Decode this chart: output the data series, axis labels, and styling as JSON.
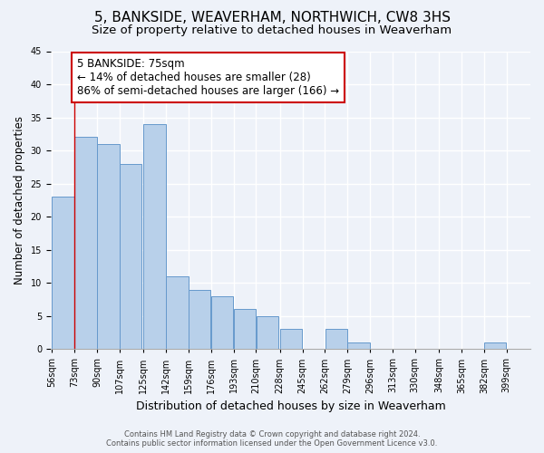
{
  "title": "5, BANKSIDE, WEAVERHAM, NORTHWICH, CW8 3HS",
  "subtitle": "Size of property relative to detached houses in Weaverham",
  "xlabel": "Distribution of detached houses by size in Weaverham",
  "ylabel": "Number of detached properties",
  "bin_labels": [
    "56sqm",
    "73sqm",
    "90sqm",
    "107sqm",
    "125sqm",
    "142sqm",
    "159sqm",
    "176sqm",
    "193sqm",
    "210sqm",
    "228sqm",
    "245sqm",
    "262sqm",
    "279sqm",
    "296sqm",
    "313sqm",
    "330sqm",
    "348sqm",
    "365sqm",
    "382sqm",
    "399sqm"
  ],
  "bin_lefts": [
    56,
    73,
    90,
    107,
    125,
    142,
    159,
    176,
    193,
    210,
    228,
    245,
    262,
    279,
    296,
    313,
    330,
    348,
    365,
    382,
    399
  ],
  "bin_width": 17,
  "values": [
    23,
    32,
    31,
    28,
    34,
    11,
    9,
    8,
    6,
    5,
    3,
    0,
    3,
    1,
    0,
    0,
    0,
    0,
    0,
    1,
    0
  ],
  "bar_color": "#b8d0ea",
  "bar_edge_color": "#6699cc",
  "annotation_box_color": "#ffffff",
  "annotation_box_edge": "#cc0000",
  "vline_x": 73,
  "vline_color": "#cc0000",
  "annotation_title": "5 BANKSIDE: 75sqm",
  "annotation_line1": "← 14% of detached houses are smaller (28)",
  "annotation_line2": "86% of semi-detached houses are larger (166) →",
  "ylim": [
    0,
    45
  ],
  "yticks": [
    0,
    5,
    10,
    15,
    20,
    25,
    30,
    35,
    40,
    45
  ],
  "footer1": "Contains HM Land Registry data © Crown copyright and database right 2024.",
  "footer2": "Contains public sector information licensed under the Open Government Licence v3.0.",
  "bg_color": "#eef2f9",
  "grid_color": "#ffffff",
  "title_fontsize": 11,
  "subtitle_fontsize": 9.5,
  "ylabel_fontsize": 8.5,
  "xlabel_fontsize": 9,
  "annotation_fontsize": 8.5,
  "tick_fontsize": 7
}
